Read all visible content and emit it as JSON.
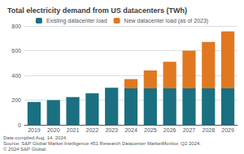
{
  "chart_data": {
    "type": "bar",
    "title": "Total electricity demand from US datacenters (TWh)",
    "categories": [
      "2019",
      "2020",
      "2021",
      "2022",
      "2023",
      "2024",
      "2025",
      "2026",
      "2027",
      "2028",
      "2029"
    ],
    "series": [
      {
        "name": "Existing datacenter load",
        "color": "#1a7080",
        "values": [
          185,
          200,
          225,
          255,
          300,
          295,
          295,
          295,
          295,
          295,
          295
        ]
      },
      {
        "name": "New datacenter load (as of 2023)",
        "color": "#e07820",
        "values": [
          0,
          0,
          0,
          0,
          0,
          75,
          145,
          215,
          305,
          375,
          460
        ]
      }
    ],
    "stacked": true,
    "ylim": [
      0,
      800
    ],
    "yticks": [
      0,
      200,
      400,
      600,
      800
    ],
    "grid": true,
    "legend": "top",
    "annotations": [
      "Data compiled Aug. 14, 2024.",
      "Source: S&P Global Market Intelligence 451 Research Datacenter MarketMonitor, Q2 2024.",
      "© 2024 S&P Global."
    ]
  }
}
